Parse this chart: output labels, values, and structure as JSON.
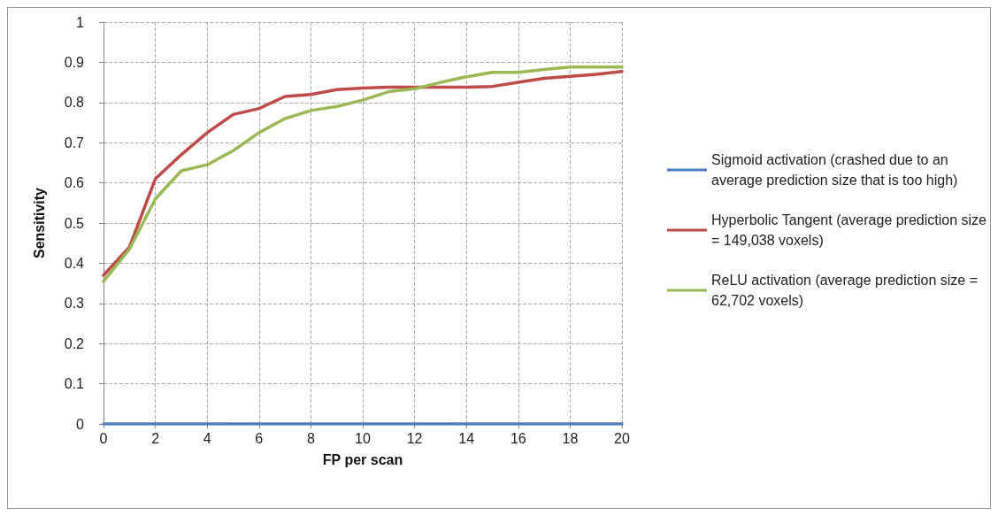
{
  "chart_data": {
    "type": "line",
    "xlabel": "FP per scan",
    "ylabel": "Sensitivity",
    "x": [
      0,
      1,
      2,
      3,
      4,
      5,
      6,
      7,
      8,
      9,
      10,
      11,
      12,
      13,
      14,
      15,
      16,
      17,
      18,
      19,
      20
    ],
    "series": [
      {
        "name": "Sigmoid activation (crashed due to an average prediction size that is too high)",
        "color": "#4a7ebb",
        "values": [
          0,
          0,
          0,
          0,
          0,
          0,
          0,
          0,
          0,
          0,
          0,
          0,
          0,
          0,
          0,
          0,
          0,
          0,
          0,
          0,
          0
        ]
      },
      {
        "name": "Hyperbolic Tangent (average prediction size = 149,038 voxels)",
        "color": "#be4b48",
        "values": [
          0.37,
          0.44,
          0.61,
          0.67,
          0.725,
          0.77,
          0.785,
          0.815,
          0.82,
          0.832,
          0.836,
          0.838,
          0.838,
          0.838,
          0.838,
          0.84,
          0.85,
          0.86,
          0.865,
          0.87,
          0.877
        ]
      },
      {
        "name": "ReLU activation (average prediction size = 62,702 voxels)",
        "color": "#98b954",
        "values": [
          0.355,
          0.435,
          0.56,
          0.63,
          0.645,
          0.68,
          0.725,
          0.76,
          0.78,
          0.79,
          0.806,
          0.827,
          0.834,
          0.85,
          0.864,
          0.875,
          0.875,
          0.882,
          0.888,
          0.888,
          0.888
        ]
      }
    ],
    "xlim": [
      0,
      20
    ],
    "xticks": [
      0,
      2,
      4,
      6,
      8,
      10,
      12,
      14,
      16,
      18,
      20
    ],
    "ylim": [
      0,
      1
    ],
    "yticks": [
      0,
      0.1,
      0.2,
      0.3,
      0.4,
      0.5,
      0.6,
      0.7,
      0.8,
      0.9,
      1
    ],
    "grid": true,
    "legend": "right",
    "marker": "none",
    "line_style": "solid"
  }
}
